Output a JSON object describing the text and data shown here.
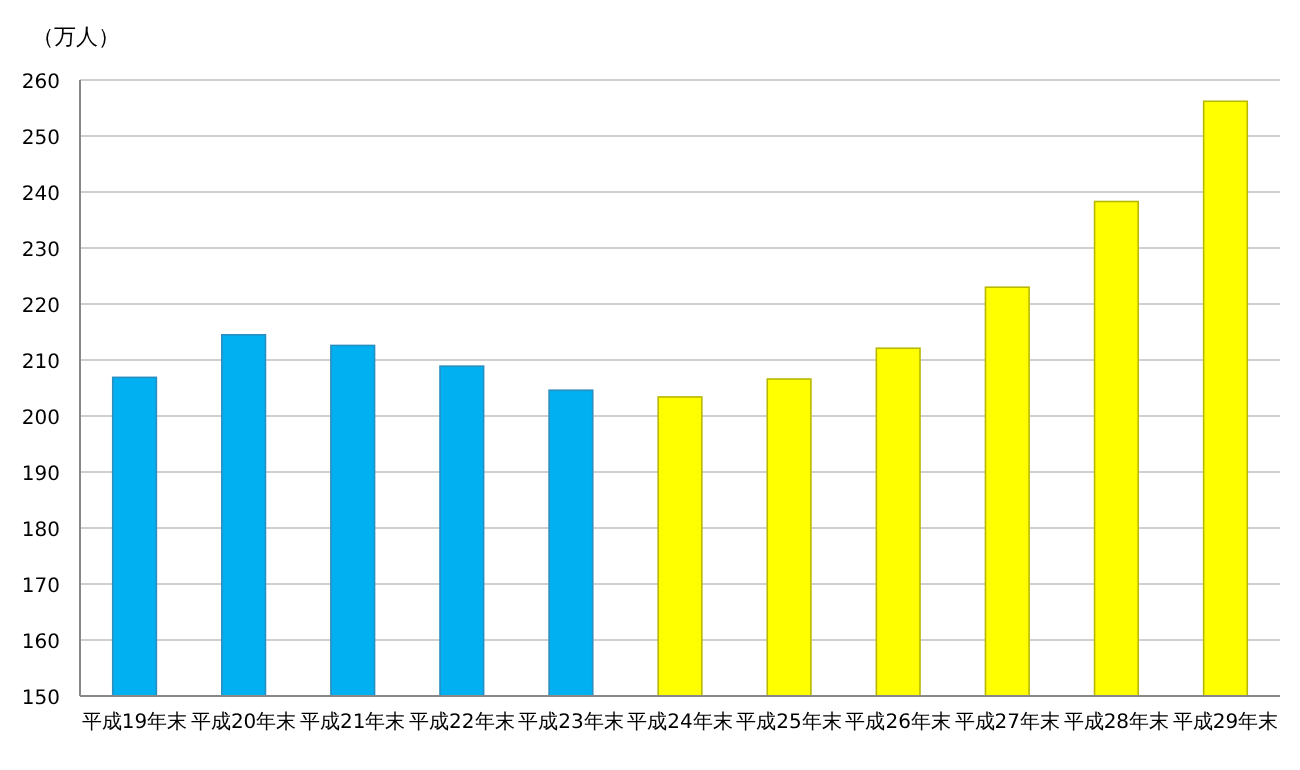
{
  "chart_data": {
    "type": "bar",
    "ylabel": "（万人）",
    "categories": [
      "平成19年末",
      "平成20年末",
      "平成21年末",
      "平成22年末",
      "平成23年末",
      "平成24年末",
      "平成25年末",
      "平成26年末",
      "平成27年末",
      "平成28年末",
      "平成29年末"
    ],
    "values": [
      206.9,
      214.5,
      212.6,
      208.9,
      204.6,
      203.4,
      206.6,
      212.1,
      223.0,
      238.3,
      256.2
    ],
    "colors": [
      "#00b0f0",
      "#00b0f0",
      "#00b0f0",
      "#00b0f0",
      "#00b0f0",
      "#ffff00",
      "#ffff00",
      "#ffff00",
      "#ffff00",
      "#ffff00",
      "#ffff00"
    ],
    "ylim": [
      150,
      260
    ],
    "yticks": [
      150,
      160,
      170,
      180,
      190,
      200,
      210,
      220,
      230,
      240,
      250,
      260
    ],
    "grid": "y"
  }
}
